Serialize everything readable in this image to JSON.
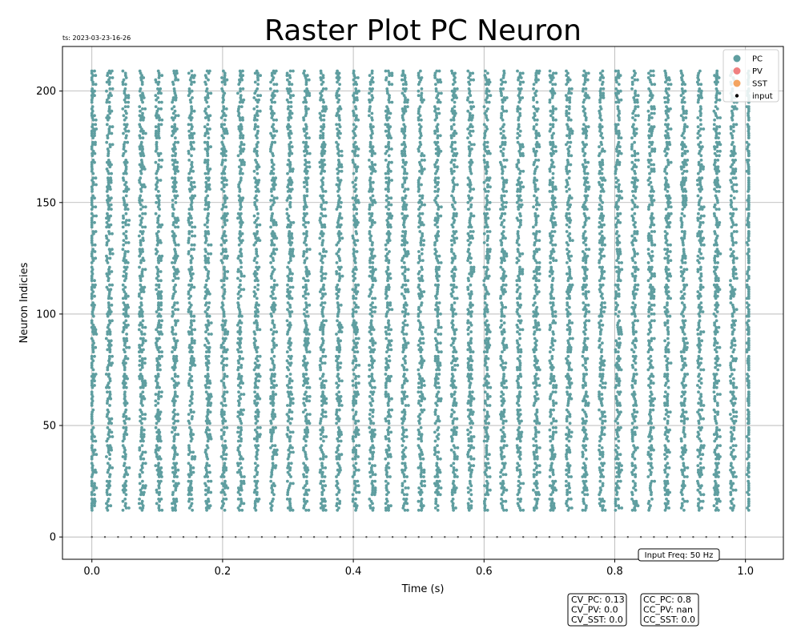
{
  "timestamp_label": "ts: 2023-03-23-16-26",
  "chart_data": {
    "type": "scatter",
    "title": "Raster Plot PC Neuron",
    "xlabel": "Time (s)",
    "ylabel": "Neuron Indicies",
    "xlim": [
      -0.045,
      1.058
    ],
    "ylim": [
      -10,
      220
    ],
    "x_ticks": [
      0.0,
      0.2,
      0.4,
      0.6,
      0.8,
      1.0
    ],
    "x_tick_labels": [
      "0.0",
      "0.2",
      "0.4",
      "0.6",
      "0.8",
      "1.0"
    ],
    "y_ticks": [
      0,
      50,
      100,
      150,
      200
    ],
    "y_tick_labels": [
      "0",
      "50",
      "100",
      "150",
      "200"
    ],
    "grid": true,
    "legend_position": "top-right",
    "series": [
      {
        "name": "PC",
        "color": "#5f9ea0",
        "neuron_range": [
          12,
          210
        ],
        "time_range": [
          0.0,
          1.005
        ]
      },
      {
        "name": "PV",
        "color": "#f08080"
      },
      {
        "name": "SST",
        "color": "#f4a460"
      },
      {
        "name": "input",
        "color": "#000000",
        "neuron_index": 0,
        "frequency_hz": 50,
        "time_range": [
          0.0,
          1.0
        ]
      }
    ],
    "annotations": {
      "input_freq": "Input Freq: 50 Hz",
      "cv_lines": [
        "CV_PC: 0.13",
        "CV_PV: 0.0",
        "CV_SST: 0.0"
      ],
      "cc_lines": [
        "CC_PC: 0.8",
        "CC_PV: nan",
        "CC_SST: 0.0"
      ]
    }
  }
}
